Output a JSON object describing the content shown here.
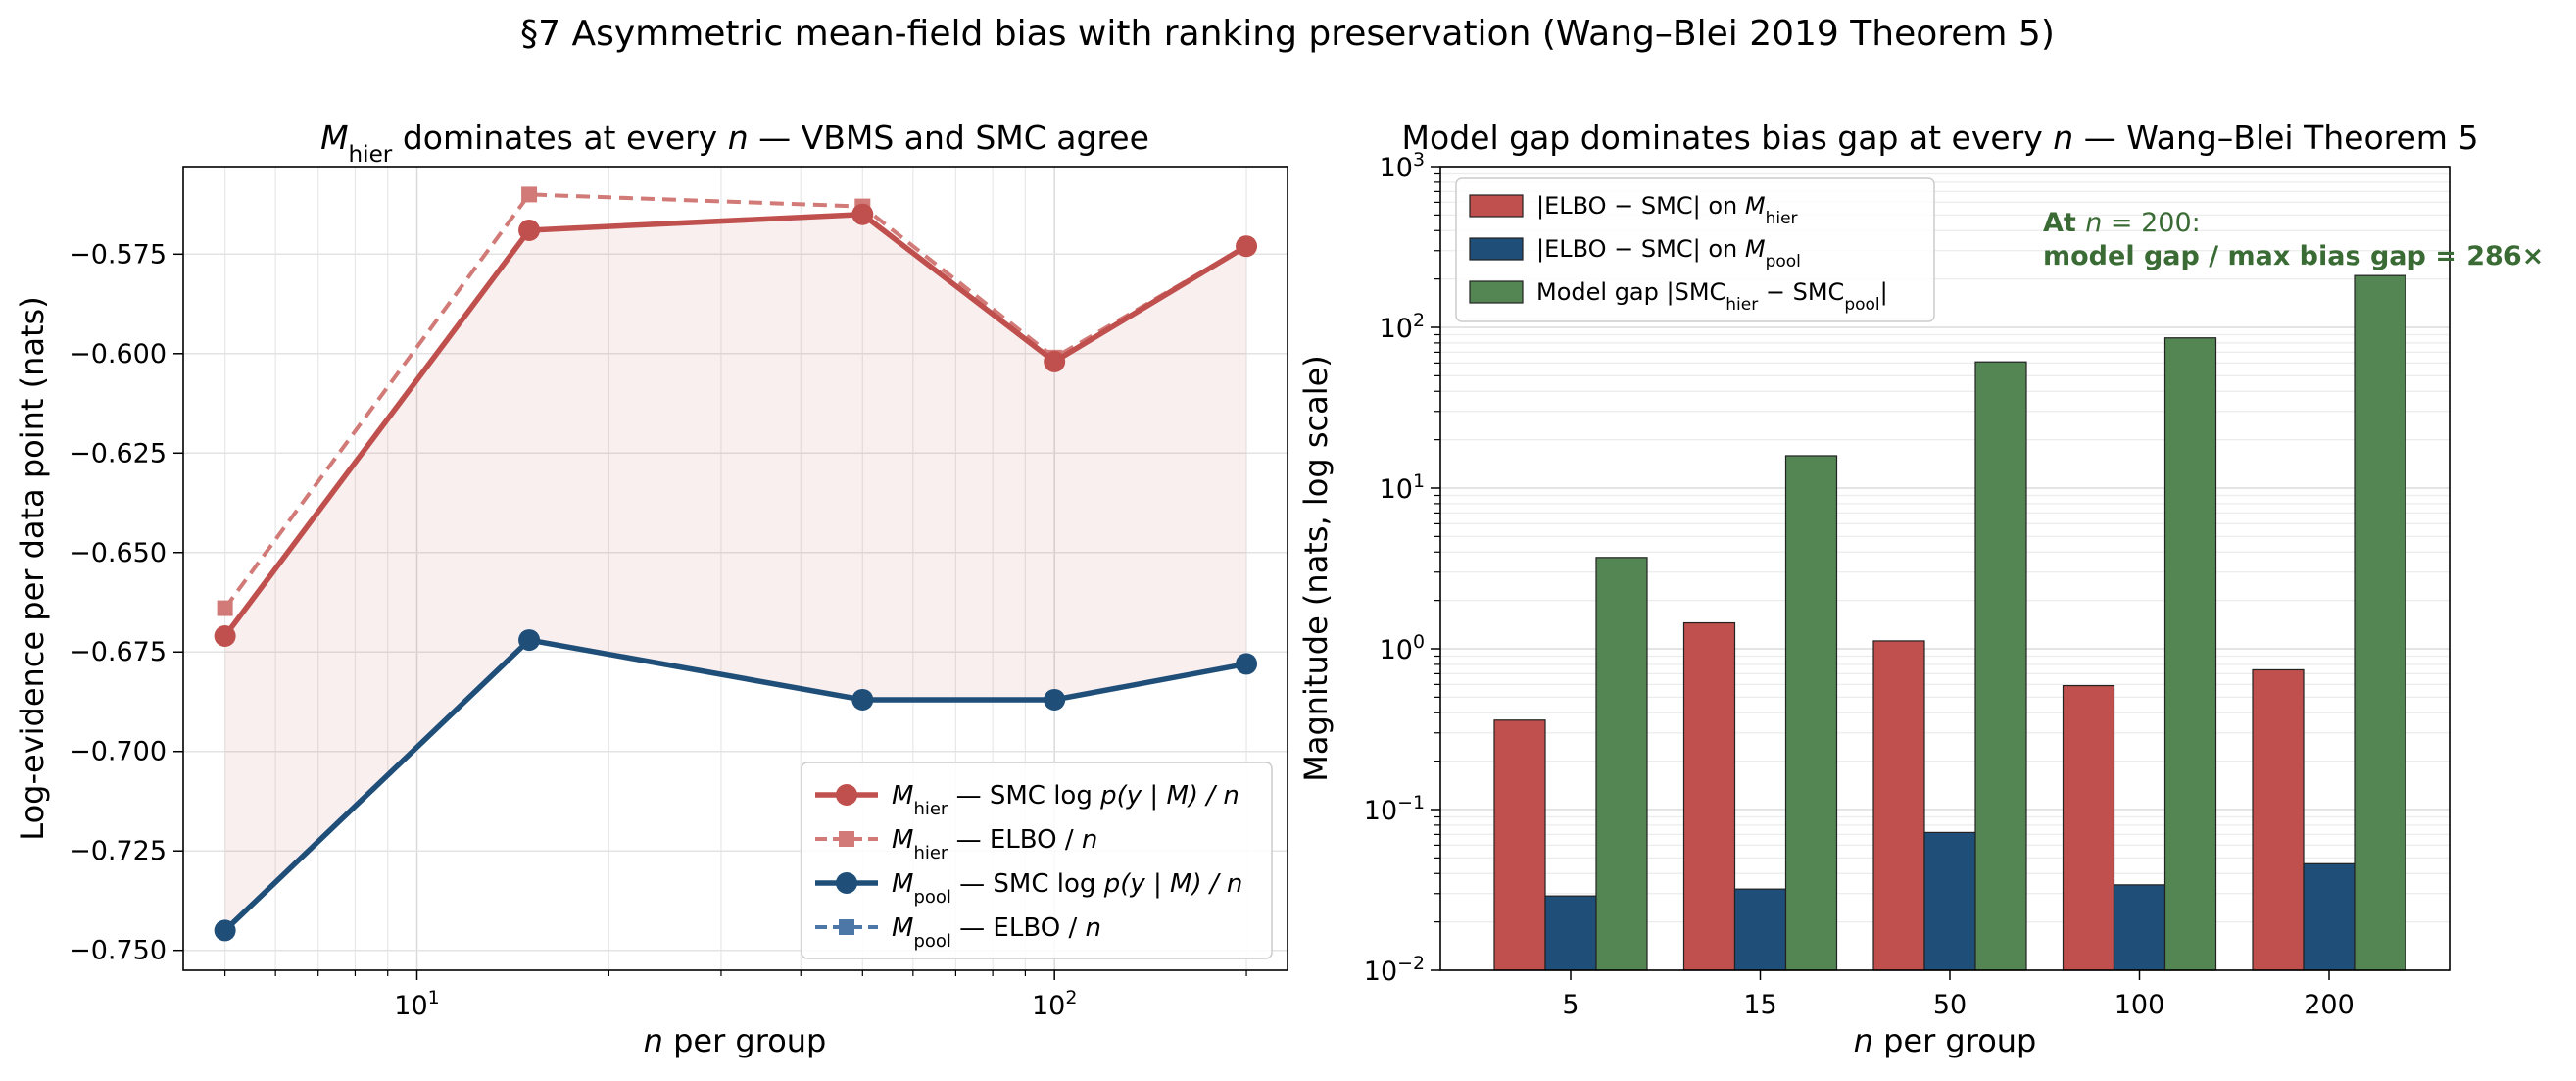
{
  "figure": {
    "suptitle": "§7 Asymmetric mean-field bias with ranking preservation (Wang–Blei 2019 Theorem 5)"
  },
  "chart_data": [
    {
      "type": "line",
      "title": "M_hier dominates at every n — VBMS and SMC agree",
      "xlabel": "n per group",
      "ylabel": "Log-evidence per data point (nats)",
      "xscale": "log",
      "xlim": [
        4.3,
        232
      ],
      "ylim": [
        -0.755,
        -0.553
      ],
      "x": [
        5,
        15,
        50,
        100,
        200
      ],
      "xtick_labels": [
        "10^1",
        "10^2"
      ],
      "yticks": [
        -0.575,
        -0.6,
        -0.625,
        -0.65,
        -0.675,
        -0.7,
        -0.725,
        -0.75
      ],
      "ytick_labels": [
        "−0.575",
        "−0.600",
        "−0.625",
        "−0.650",
        "−0.675",
        "−0.700",
        "−0.725",
        "−0.750"
      ],
      "grid": true,
      "legend_position": "lower-right",
      "series": [
        {
          "name": "M_hier — SMC log p(y | M) / n",
          "values": [
            -0.671,
            -0.569,
            -0.565,
            -0.602,
            -0.573
          ],
          "color": "#c0504d",
          "style": "solid",
          "marker": "circle"
        },
        {
          "name": "M_hier — ELBO / n",
          "values": [
            -0.664,
            -0.56,
            -0.563,
            -0.601,
            -0.573
          ],
          "color": "#d17a77",
          "style": "dashed",
          "marker": "square"
        },
        {
          "name": "M_pool — SMC log p(y | M) / n",
          "values": [
            -0.745,
            -0.672,
            -0.687,
            -0.687,
            -0.678
          ],
          "color": "#1f4e79",
          "style": "solid",
          "marker": "circle"
        },
        {
          "name": "M_pool — ELBO / n",
          "values": [
            -0.745,
            -0.672,
            -0.687,
            -0.687,
            -0.678
          ],
          "color": "#4d77a6",
          "style": "dashed",
          "marker": "square"
        }
      ],
      "legend": [
        {
          "main": "M",
          "sub": "hier",
          "rest": " — SMC log ",
          "ital": "p(y | M) / n"
        },
        {
          "main": "M",
          "sub": "hier",
          "rest": " — ELBO / ",
          "ital": "n"
        },
        {
          "main": "M",
          "sub": "pool",
          "rest": " — SMC log ",
          "ital": "p(y | M) / n"
        },
        {
          "main": "M",
          "sub": "pool",
          "rest": " — ELBO / ",
          "ital": "n"
        }
      ]
    },
    {
      "type": "bar",
      "title": "Model gap dominates bias gap at every n — Wang–Blei Theorem 5",
      "xlabel": "n per group",
      "ylabel": "Magnitude (nats, log scale)",
      "yscale": "log",
      "ylim": [
        0.01,
        1000
      ],
      "categories": [
        "5",
        "15",
        "50",
        "100",
        "200"
      ],
      "ytick_labels": [
        "10^-2",
        "10^-1",
        "10^0",
        "10^1",
        "10^2",
        "10^3"
      ],
      "grid": true,
      "legend_position": "top-left",
      "series": [
        {
          "name": "|ELBO − SMC| on M_hier",
          "values": [
            0.36,
            1.45,
            1.12,
            0.59,
            0.74
          ],
          "color": "#c0504d"
        },
        {
          "name": "|ELBO − SMC| on M_pool",
          "values": [
            0.029,
            0.032,
            0.072,
            0.034,
            0.046
          ],
          "color": "#1f4e79"
        },
        {
          "name": "Model gap |SMC_hier − SMC_pool|",
          "values": [
            3.7,
            15.9,
            61,
            86,
            210
          ],
          "color": "#548654"
        }
      ],
      "annotation": {
        "line1_prefix": "At ",
        "line1_var": "n",
        "line1_value": " = 200:",
        "line2": "model gap / max bias gap = 286×"
      }
    }
  ]
}
